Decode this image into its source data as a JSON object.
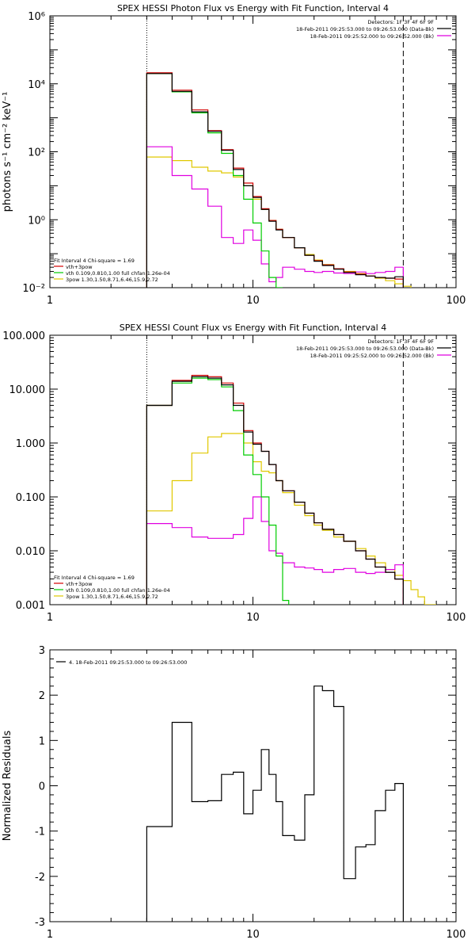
{
  "colors": {
    "black": "#000000",
    "red": "#d40000",
    "green": "#00cc00",
    "yellow": "#e0c800",
    "magenta": "#e000e0",
    "orange": "#e08000"
  },
  "chart_data": [
    {
      "type": "line",
      "title": "SPEX HESSI Photon Flux vs Energy with Fit Function, Interval 4",
      "xlabel": "",
      "ylabel": "photons s⁻¹ cm⁻² keV⁻¹",
      "xscale": "log",
      "yscale": "log",
      "xlim": [
        1,
        100
      ],
      "ylim": [
        0.01,
        1000000
      ],
      "xticks": [
        {
          "v": 1,
          "label": "1"
        },
        {
          "v": 10,
          "label": "10"
        },
        {
          "v": 100,
          "label": "100"
        }
      ],
      "yticks": [
        {
          "v": 0.01,
          "label": "10⁻²"
        },
        {
          "v": 1,
          "label": "10⁰"
        },
        {
          "v": 100,
          "label": "10²"
        },
        {
          "v": 10000,
          "label": "10⁴"
        },
        {
          "v": 1000000,
          "label": "10⁶"
        }
      ],
      "vlines": [
        {
          "x": 3,
          "style": "dotted"
        },
        {
          "x": 55,
          "style": "dashed"
        }
      ],
      "legend_top": {
        "position": "top-right",
        "header": "Detectors: 1F 3F 4F 6F 9F",
        "entries": [
          {
            "text": "18-Feb-2011 09:25:53.000 to 09:26:53.000 (Data-Bk)",
            "color": "#000000"
          },
          {
            "text": "18-Feb-2011 09:25:52.000 to 09:26:52.000 (Bk)",
            "color": "#e000e0"
          }
        ]
      },
      "legend_bottom": {
        "position": "bottom-left",
        "header": "Fit Interval  4    Chi-square = 1.69",
        "entries": [
          {
            "text": "vth+3pow",
            "color": "#d40000"
          },
          {
            "text": "vth 0.109,0.810,1.00  full chfan 1.26e-04",
            "color": "#00cc00"
          },
          {
            "text": "3pow 1.30,1.50,8.71,6.46,15.9,2.72",
            "color": "#e0c800"
          }
        ]
      },
      "series": [
        {
          "role": "data",
          "color": "#000000",
          "edges": [
            3,
            4,
            5,
            6,
            7,
            8,
            9,
            10,
            11,
            12,
            13,
            14,
            16,
            18,
            20,
            22,
            25,
            28,
            32,
            36,
            40,
            45,
            50,
            55
          ],
          "values": [
            20000,
            6000,
            1500,
            400,
            110,
            30,
            10,
            4.5,
            2,
            0.9,
            0.5,
            0.3,
            0.15,
            0.09,
            0.06,
            0.045,
            0.035,
            0.028,
            0.024,
            0.022,
            0.02,
            0.019,
            0.021
          ]
        },
        {
          "role": "model",
          "color": "#d40000",
          "edges": [
            3,
            4,
            5,
            6,
            7,
            8,
            9,
            10,
            11,
            12,
            13,
            14,
            16,
            18,
            20,
            22,
            25,
            28,
            32,
            36,
            40,
            45,
            50,
            55
          ],
          "values": [
            21000,
            6500,
            1700,
            420,
            115,
            33,
            12,
            4.8,
            2.1,
            0.95,
            0.52,
            0.3,
            0.15,
            0.09,
            0.062,
            0.047,
            0.036,
            0.029,
            0.025,
            0.022,
            0.02,
            0.019,
            0.018
          ]
        },
        {
          "role": "thermal",
          "color": "#00cc00",
          "edges": [
            3,
            4,
            5,
            6,
            7,
            8,
            9,
            10,
            11,
            12,
            13,
            14
          ],
          "values": [
            20000,
            5800,
            1400,
            360,
            90,
            20,
            4,
            0.8,
            0.12,
            0.02,
            0.006
          ]
        },
        {
          "role": "power-law",
          "color": "#e0c800",
          "edges": [
            3,
            4,
            5,
            6,
            7,
            8,
            9,
            10,
            11,
            12,
            13,
            14,
            16,
            18,
            20,
            22,
            25,
            28,
            32,
            36,
            40,
            45,
            50,
            55,
            60
          ],
          "values": [
            70,
            55,
            35,
            27,
            24,
            18,
            10,
            4,
            2,
            0.95,
            0.52,
            0.3,
            0.15,
            0.095,
            0.065,
            0.048,
            0.036,
            0.03,
            0.026,
            0.022,
            0.019,
            0.016,
            0.013,
            0.011
          ]
        },
        {
          "role": "background",
          "color": "#e000e0",
          "edges": [
            3,
            4,
            5,
            6,
            7,
            8,
            9,
            10,
            11,
            12,
            13,
            14,
            16,
            18,
            20,
            22,
            25,
            28,
            32,
            36,
            40,
            45,
            50,
            55
          ],
          "values": [
            140,
            20,
            8,
            2.5,
            0.3,
            0.2,
            0.5,
            0.25,
            0.05,
            0.015,
            0.02,
            0.04,
            0.035,
            0.03,
            0.028,
            0.03,
            0.027,
            0.026,
            0.029,
            0.026,
            0.028,
            0.03,
            0.04
          ]
        }
      ]
    },
    {
      "type": "line",
      "title": "SPEX HESSI Count Flux vs Energy with Fit Function, Interval 4",
      "xlabel": "",
      "ylabel": "",
      "xscale": "log",
      "yscale": "log",
      "xlim": [
        1,
        100
      ],
      "ylim": [
        0.001,
        100
      ],
      "xticks": [
        {
          "v": 1,
          "label": "1"
        },
        {
          "v": 10,
          "label": "10"
        },
        {
          "v": 100,
          "label": "100"
        }
      ],
      "yticks": [
        {
          "v": 0.001,
          "label": "0.001"
        },
        {
          "v": 0.01,
          "label": "0.010"
        },
        {
          "v": 0.1,
          "label": "0.100"
        },
        {
          "v": 1,
          "label": "1.000"
        },
        {
          "v": 10,
          "label": "10.000"
        },
        {
          "v": 100,
          "label": "100.000"
        }
      ],
      "vlines": [
        {
          "x": 3,
          "style": "dotted"
        },
        {
          "x": 55,
          "style": "dashed"
        }
      ],
      "legend_top": {
        "position": "top-right",
        "header": "Detectors: 1F 3F 4F 6F 9F",
        "entries": [
          {
            "text": "18-Feb-2011 09:25:53.000 to 09:26:53.000 (Data-Bk)",
            "color": "#000000"
          },
          {
            "text": "18-Feb-2011 09:25:52.000 to 09:26:52.000 (Bk)",
            "color": "#e000e0"
          }
        ]
      },
      "legend_bottom": {
        "position": "bottom-left",
        "header": "Fit Interval  4    Chi-square = 1.69",
        "entries": [
          {
            "text": "vth+3pow",
            "color": "#d40000"
          },
          {
            "text": "vth 0.109,0.810,1.00  full chfan 1.26e-04",
            "color": "#00cc00"
          },
          {
            "text": "3pow 1.30,1.50,8.71,6.46,15.9,2.72",
            "color": "#e0c800"
          }
        ]
      },
      "series": [
        {
          "role": "data",
          "color": "#000000",
          "edges": [
            3,
            4,
            5,
            6,
            7,
            8,
            9,
            10,
            11,
            12,
            13,
            14,
            16,
            18,
            20,
            22,
            25,
            28,
            32,
            36,
            40,
            45,
            50,
            55
          ],
          "values": [
            5,
            14,
            17,
            16,
            12,
            5,
            1.6,
            0.95,
            0.7,
            0.4,
            0.2,
            0.13,
            0.08,
            0.05,
            0.033,
            0.025,
            0.02,
            0.015,
            0.01,
            0.007,
            0.005,
            0.004,
            0.003
          ]
        },
        {
          "role": "model",
          "color": "#d40000",
          "edges": [
            3,
            4,
            5,
            6,
            7,
            8,
            9,
            10,
            11,
            12,
            13,
            14,
            16,
            18,
            20,
            22,
            25,
            28,
            32,
            36,
            40,
            45,
            50,
            55
          ],
          "values": [
            5,
            14.5,
            18,
            17,
            13,
            5.5,
            1.7,
            1,
            0.7,
            0.4,
            0.2,
            0.13,
            0.08,
            0.05,
            0.033,
            0.025,
            0.02,
            0.015,
            0.01,
            0.007,
            0.005,
            0.004,
            0.003
          ]
        },
        {
          "role": "thermal",
          "color": "#00cc00",
          "edges": [
            3,
            4,
            5,
            6,
            7,
            8,
            9,
            10,
            11,
            12,
            13,
            14,
            15
          ],
          "values": [
            5,
            13,
            16,
            15,
            11,
            4,
            0.6,
            0.26,
            0.1,
            0.03,
            0.008,
            0.0012
          ]
        },
        {
          "role": "power-law",
          "color": "#e0c800",
          "edges": [
            3,
            4,
            5,
            6,
            7,
            8,
            9,
            10,
            11,
            12,
            13,
            14,
            16,
            18,
            20,
            22,
            25,
            28,
            32,
            36,
            40,
            45,
            50,
            55,
            60,
            65,
            70,
            80
          ],
          "values": [
            0.055,
            0.2,
            0.65,
            1.3,
            1.5,
            1.5,
            1,
            0.45,
            0.3,
            0.28,
            0.2,
            0.12,
            0.07,
            0.045,
            0.03,
            0.024,
            0.018,
            0.015,
            0.011,
            0.008,
            0.006,
            0.0045,
            0.0035,
            0.0028,
            0.0019,
            0.0014,
            0.001
          ]
        },
        {
          "role": "background",
          "color": "#e000e0",
          "edges": [
            3,
            4,
            5,
            6,
            7,
            8,
            9,
            10,
            11,
            12,
            13,
            14,
            16,
            18,
            20,
            22,
            25,
            28,
            32,
            36,
            40,
            45,
            50,
            55
          ],
          "values": [
            0.032,
            0.027,
            0.018,
            0.017,
            0.017,
            0.02,
            0.04,
            0.1,
            0.035,
            0.01,
            0.009,
            0.006,
            0.005,
            0.0048,
            0.0045,
            0.004,
            0.0045,
            0.0047,
            0.004,
            0.0038,
            0.004,
            0.0045,
            0.0055
          ]
        }
      ]
    },
    {
      "type": "line",
      "title": "",
      "xlabel": "",
      "ylabel": "Normalized Residuals",
      "xscale": "log",
      "yscale": "linear",
      "xlim": [
        1,
        100
      ],
      "ylim": [
        -3,
        3
      ],
      "xticks": [
        {
          "v": 1,
          "label": "1"
        },
        {
          "v": 10,
          "label": "10"
        },
        {
          "v": 100,
          "label": "100"
        }
      ],
      "yticks": [
        {
          "v": -3,
          "label": "-3"
        },
        {
          "v": -2,
          "label": "-2"
        },
        {
          "v": -1,
          "label": "-1"
        },
        {
          "v": 0,
          "label": "0"
        },
        {
          "v": 1,
          "label": "1"
        },
        {
          "v": 2,
          "label": "2"
        },
        {
          "v": 3,
          "label": "3"
        }
      ],
      "vlines": [],
      "legend_top": {
        "position": "top-left",
        "header": "",
        "entries": [
          {
            "text": "4. 18-Feb-2011 09:25:53.000 to 09:26:53.000",
            "color": "#000000"
          }
        ]
      },
      "legend_bottom": null,
      "series": [
        {
          "role": "residuals",
          "color": "#000000",
          "edges": [
            3,
            4,
            5,
            6,
            7,
            8,
            9,
            10,
            11,
            12,
            13,
            14,
            16,
            18,
            20,
            22,
            25,
            28,
            32,
            36,
            40,
            45,
            50,
            55
          ],
          "values": [
            -0.9,
            1.4,
            -0.35,
            -0.33,
            0.25,
            0.3,
            -0.62,
            -0.1,
            0.8,
            0.25,
            -0.35,
            -1.1,
            -1.2,
            -0.2,
            2.2,
            2.1,
            1.75,
            -2.05,
            -1.35,
            -1.3,
            -0.55,
            -0.1,
            0.05
          ],
          "drop_to_bottom": true
        }
      ]
    }
  ]
}
